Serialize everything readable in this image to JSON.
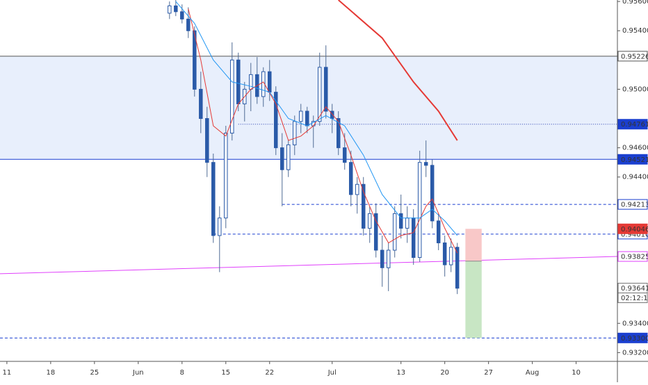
{
  "chart_data": {
    "type": "candlestick",
    "x": [
      26,
      27,
      28,
      29,
      30,
      31,
      32,
      33,
      34,
      35,
      36,
      37,
      38,
      39,
      40,
      41,
      42,
      43,
      44,
      45,
      46,
      47,
      48,
      49,
      50,
      51,
      52,
      53,
      54,
      55,
      56,
      57,
      58,
      59,
      60,
      61,
      62,
      63,
      64,
      65,
      66,
      67,
      68,
      69,
      70,
      71,
      72
    ],
    "open": [
      0.9552,
      0.9557,
      0.9553,
      0.9548,
      0.954,
      0.95,
      0.948,
      0.945,
      0.94,
      0.9412,
      0.947,
      0.952,
      0.949,
      0.95,
      0.951,
      0.9495,
      0.9512,
      0.9498,
      0.946,
      0.9445,
      0.9462,
      0.9478,
      0.9485,
      0.9475,
      0.9478,
      0.9515,
      0.9485,
      0.948,
      0.946,
      0.945,
      0.9428,
      0.9435,
      0.9405,
      0.9415,
      0.939,
      0.9378,
      0.939,
      0.9415,
      0.9405,
      0.9412,
      0.9385,
      0.945,
      0.9448,
      0.941,
      0.9395,
      0.938,
      0.9392
    ],
    "high": [
      0.956,
      0.9561,
      0.9558,
      0.9556,
      0.9543,
      0.9512,
      0.9488,
      0.9456,
      0.942,
      0.9475,
      0.9532,
      0.9525,
      0.9505,
      0.9518,
      0.9522,
      0.9515,
      0.952,
      0.9502,
      0.947,
      0.9465,
      0.9482,
      0.949,
      0.9488,
      0.9482,
      0.9525,
      0.953,
      0.949,
      0.9485,
      0.947,
      0.9458,
      0.944,
      0.944,
      0.942,
      0.9422,
      0.94,
      0.9395,
      0.942,
      0.9428,
      0.942,
      0.9418,
      0.9458,
      0.9465,
      0.9452,
      0.9415,
      0.94,
      0.9398,
      0.9395
    ],
    "low": [
      0.9548,
      0.955,
      0.9545,
      0.9535,
      0.9495,
      0.947,
      0.944,
      0.9395,
      0.9375,
      0.9405,
      0.9465,
      0.9485,
      0.9478,
      0.9485,
      0.949,
      0.9488,
      0.9492,
      0.9455,
      0.942,
      0.944,
      0.9455,
      0.947,
      0.947,
      0.946,
      0.9475,
      0.948,
      0.947,
      0.9455,
      0.9445,
      0.942,
      0.9415,
      0.94,
      0.9395,
      0.9385,
      0.9365,
      0.9362,
      0.9385,
      0.9398,
      0.9395,
      0.938,
      0.9382,
      0.944,
      0.9405,
      0.939,
      0.9372,
      0.9375,
      0.936
    ],
    "close": [
      0.9557,
      0.9553,
      0.9548,
      0.954,
      0.95,
      0.948,
      0.945,
      0.94,
      0.9412,
      0.947,
      0.952,
      0.949,
      0.95,
      0.951,
      0.9495,
      0.9512,
      0.9498,
      0.946,
      0.9445,
      0.9462,
      0.9478,
      0.9485,
      0.9475,
      0.9478,
      0.9515,
      0.9485,
      0.948,
      0.946,
      0.945,
      0.9428,
      0.9435,
      0.9405,
      0.9415,
      0.939,
      0.9378,
      0.939,
      0.9415,
      0.9405,
      0.9412,
      0.9385,
      0.945,
      0.9448,
      0.941,
      0.9395,
      0.938,
      0.9392,
      0.9364
    ],
    "up_color": "#ffffff",
    "down_color": "#2a5aa8",
    "wick_color": "#4f6b94",
    "series": [
      {
        "color": "#e53935",
        "x": [
          29,
          31,
          33,
          35,
          37,
          39,
          41,
          43,
          45,
          47,
          49,
          51,
          53,
          55,
          57,
          59,
          61,
          63,
          65,
          67,
          68,
          70,
          72
        ],
        "values": [
          0.9555,
          0.952,
          0.9475,
          0.9468,
          0.949,
          0.95,
          0.9505,
          0.949,
          0.9465,
          0.9468,
          0.9475,
          0.9488,
          0.9478,
          0.9455,
          0.943,
          0.941,
          0.9395,
          0.94,
          0.9402,
          0.942,
          0.9425,
          0.9405,
          0.9388
        ]
      },
      {
        "color": "#2196f3",
        "x": [
          27,
          30,
          33,
          36,
          39,
          42,
          45,
          48,
          51,
          54,
          57,
          60,
          63,
          66,
          68,
          70,
          72
        ],
        "values": [
          0.956,
          0.9545,
          0.952,
          0.9505,
          0.9502,
          0.9498,
          0.948,
          0.9475,
          0.9482,
          0.9475,
          0.9455,
          0.9428,
          0.9412,
          0.9412,
          0.9418,
          0.941,
          0.94
        ]
      },
      {
        "color": "#e53935",
        "width": 2,
        "x": [
          53,
          60,
          65,
          69,
          72
        ],
        "values": [
          0.9561,
          0.9535,
          0.9505,
          0.9485,
          0.9465
        ]
      }
    ],
    "zone": {
      "from": 0.94521,
      "to": 0.95226,
      "color": "#e8effc"
    },
    "trendline": {
      "color": "#e040fb",
      "x": [
        -1.1,
        97.6
      ],
      "values": [
        0.93739,
        0.93857
      ],
      "label": "0.93825"
    },
    "levels": [
      {
        "value": 0.95226,
        "label": "0.95226",
        "from": -1.1,
        "style": "solid",
        "color": "#555555",
        "label_bg": "#ffffff",
        "label_fg": "#000000"
      },
      {
        "value": 0.94761,
        "label": "0.94761",
        "from": 37,
        "style": "dotted",
        "color": "#2a3fb0",
        "label_bg": "#1a3fd0",
        "label_fg": "#ffffff"
      },
      {
        "value": 0.94521,
        "label": "0.94521",
        "from": -1.1,
        "style": "solid",
        "color": "#1a3fd0",
        "label_bg": "#1a3fd0",
        "label_fg": "#ffffff"
      },
      {
        "value": 0.94213,
        "label": "0.94213",
        "from": 44,
        "style": "dashed",
        "color": "#1a3fd0",
        "label_bg": "#ffffff",
        "label_fg": "#000000"
      },
      {
        "value": 0.9401,
        "label": "0.94010",
        "from": 33,
        "style": "dashed",
        "color": "#1a3fd0",
        "label_bg": "#ffffff",
        "label_fg": "#000000"
      },
      {
        "value": 0.933,
        "label": "0.93300",
        "from": -1.1,
        "style": "dashed",
        "color": "#1a3fd0",
        "label_bg": "#1a3fd0",
        "label_fg": "#ffffff"
      }
    ],
    "position": {
      "x": [
        73.3,
        75.9
      ],
      "entry": 0.93825,
      "stop": 0.94046,
      "target": 0.933,
      "stop_label": "0.94046",
      "stop_color": "#f8c8c8",
      "target_color": "#c8e6c4",
      "stop_label_bg": "#e53935"
    },
    "current_price": {
      "value": 0.93641,
      "label": "0.93641",
      "countdown": "02:12:19"
    },
    "ylim": [
      0.9314,
      0.9561
    ],
    "yticks": [
      {
        "value": 0.956,
        "label": "0.95600"
      },
      {
        "value": 0.954,
        "label": "0.95400"
      },
      {
        "value": 0.95,
        "label": "0.95000"
      },
      {
        "value": 0.946,
        "label": "0.94600"
      },
      {
        "value": 0.944,
        "label": "0.94400"
      },
      {
        "value": 0.934,
        "label": "0.93400"
      },
      {
        "value": 0.932,
        "label": "0.93200"
      }
    ],
    "xlim": [
      -1.1,
      97.6
    ],
    "xticks": [
      {
        "value": 0,
        "label": "11"
      },
      {
        "value": 7,
        "label": "18"
      },
      {
        "value": 14,
        "label": "25"
      },
      {
        "value": 21,
        "label": "Jun"
      },
      {
        "value": 28,
        "label": "8"
      },
      {
        "value": 35,
        "label": "15"
      },
      {
        "value": 42,
        "label": "22"
      },
      {
        "value": 52,
        "label": "Jul"
      },
      {
        "value": 63,
        "label": "13"
      },
      {
        "value": 70,
        "label": "20"
      },
      {
        "value": 77,
        "label": "27"
      },
      {
        "value": 84,
        "label": "Aug"
      },
      {
        "value": 91,
        "label": "10"
      }
    ]
  }
}
